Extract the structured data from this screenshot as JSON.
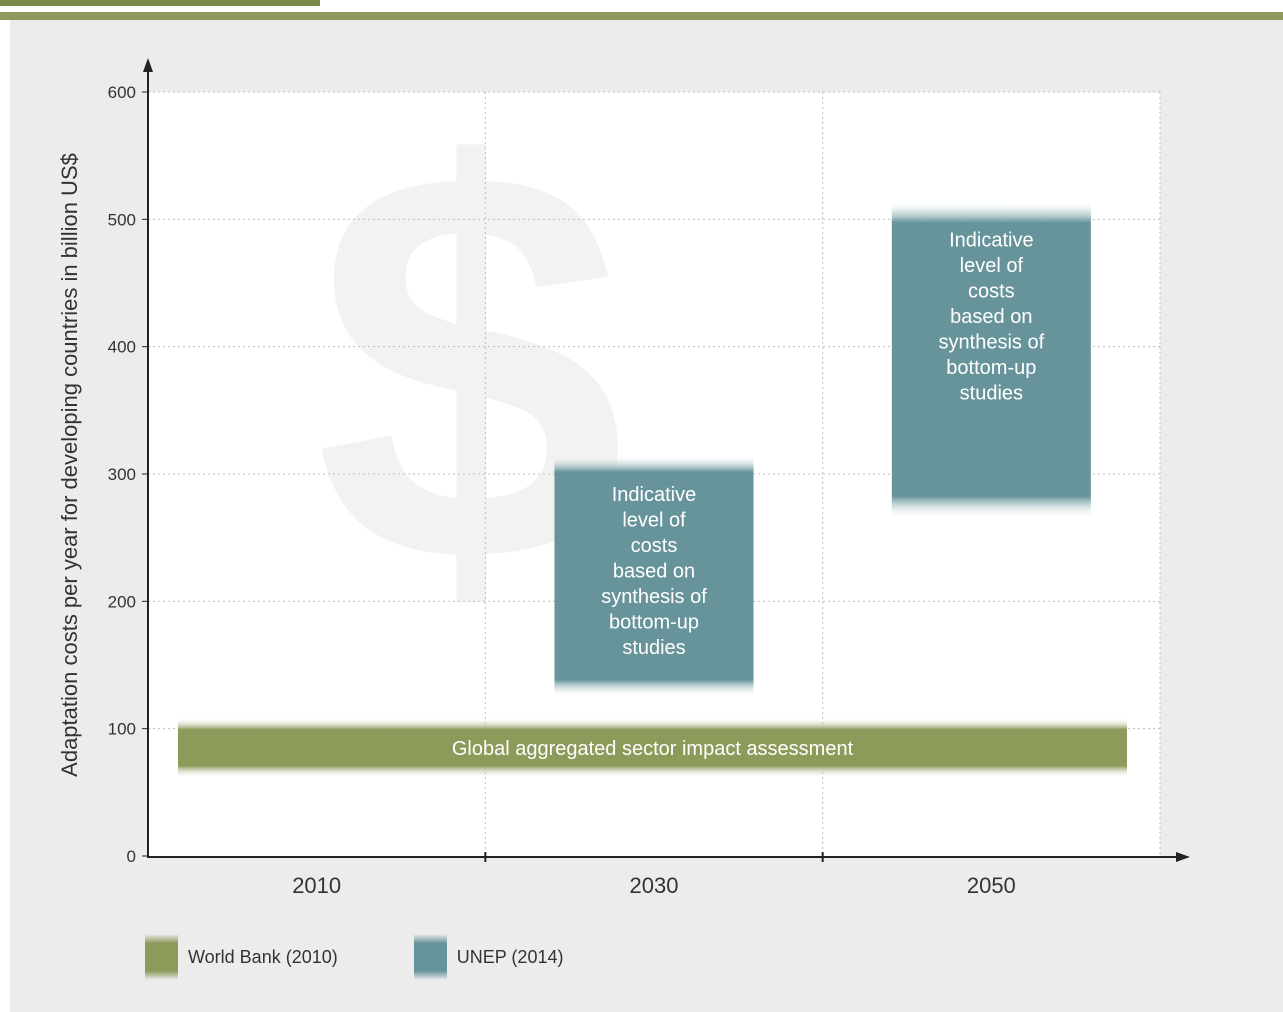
{
  "colors": {
    "world_bank": "#8c9a5a",
    "unep": "#67949a",
    "accent_bar": "#8c9a5a"
  },
  "chart_data": {
    "type": "bar",
    "ylabel": "Adaptation costs per year for developing countries in billion US$",
    "ylim": [
      0,
      600
    ],
    "yticks": [
      0,
      100,
      200,
      300,
      400,
      500,
      600
    ],
    "categories": [
      "2010",
      "2030",
      "2050"
    ],
    "grid": true,
    "legend_position": "bottom-left",
    "series": [
      {
        "name": "World Bank (2010)",
        "color": "#8c9a5a",
        "ranges": [
          {
            "from": "2010",
            "to": "2050",
            "low": 70,
            "high": 100,
            "label": "Global aggregated sector impact assessment"
          }
        ]
      },
      {
        "name": "UNEP (2014)",
        "color": "#67949a",
        "ranges": [
          {
            "at": "2030",
            "low": 140,
            "high": 300,
            "label": "Indicative level of costs based on synthesis of bottom-up studies"
          },
          {
            "at": "2050",
            "low": 280,
            "high": 500,
            "label": "Indicative level of costs based on synthesis of bottom-up studies"
          }
        ]
      }
    ],
    "legend": [
      "World Bank (2010)",
      "UNEP (2014)"
    ]
  }
}
